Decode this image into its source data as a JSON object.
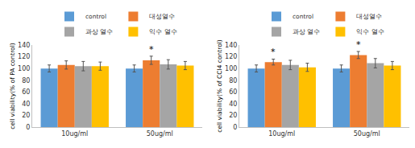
{
  "chart_data": [
    {
      "type": "bar",
      "y_label": "cell viability(% of PA control)",
      "categories": [
        "10ug/ml",
        "50ug/ml"
      ],
      "series": [
        {
          "name": "control",
          "color": "#5b9bd5",
          "values": [
            100,
            100
          ],
          "errors": [
            6,
            6
          ]
        },
        {
          "name": "대성열수",
          "color": "#ed7d31",
          "values": [
            106,
            114
          ],
          "errors": [
            7,
            7
          ]
        },
        {
          "name": "과상 열수",
          "color": "#a5a5a5",
          "values": [
            104,
            107
          ],
          "errors": [
            8,
            8
          ]
        },
        {
          "name": "익수 열수",
          "color": "#ffc000",
          "values": [
            104,
            105
          ],
          "errors": [
            7,
            7
          ]
        }
      ],
      "annotations": [
        {
          "text": "*",
          "category": "50ug/ml",
          "series": "대성열수"
        }
      ],
      "ylim": [
        0,
        140
      ],
      "yticks": [
        0,
        20,
        40,
        60,
        80,
        100,
        120,
        140
      ],
      "grid": false,
      "legend": "top"
    },
    {
      "type": "bar",
      "y_label": "cell viability(% of CCl4 control)",
      "categories": [
        "10ug/ml",
        "50ug/ml"
      ],
      "series": [
        {
          "name": "control",
          "color": "#5b9bd5",
          "values": [
            100,
            100
          ],
          "errors": [
            6,
            6
          ]
        },
        {
          "name": "대성열수",
          "color": "#ed7d31",
          "values": [
            111,
            123
          ],
          "errors": [
            5,
            6
          ]
        },
        {
          "name": "과상 열수",
          "color": "#a5a5a5",
          "values": [
            106,
            109
          ],
          "errors": [
            8,
            8
          ]
        },
        {
          "name": "익수 열수",
          "color": "#ffc000",
          "values": [
            102,
            105
          ],
          "errors": [
            7,
            7
          ]
        }
      ],
      "annotations": [
        {
          "text": "*",
          "category": "10ug/ml",
          "series": "대성열수"
        },
        {
          "text": "*",
          "category": "50ug/ml",
          "series": "대성열수"
        }
      ],
      "ylim": [
        0,
        140
      ],
      "yticks": [
        0,
        20,
        40,
        60,
        80,
        100,
        120,
        140
      ],
      "grid": false,
      "legend": "top"
    }
  ]
}
